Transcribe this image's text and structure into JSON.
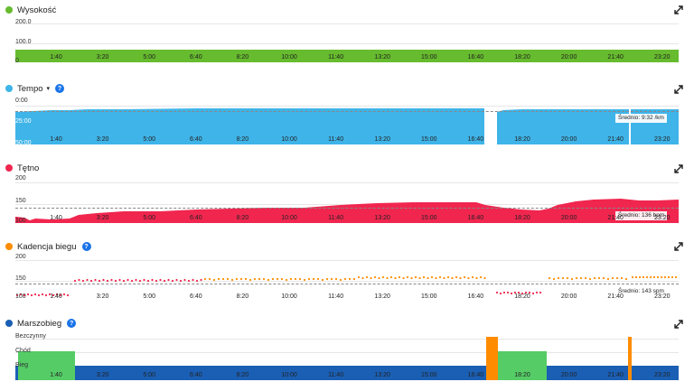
{
  "colors": {
    "green": "#66bb2e",
    "blue": "#3fb4e8",
    "red": "#f0264f",
    "orange": "#ff8c00",
    "navy": "#1a5fb4",
    "walkgreen": "#55cc66",
    "help": "#1a73e8"
  },
  "x_ticks": [
    "1:40",
    "3:20",
    "5:00",
    "6:40",
    "8:20",
    "10:00",
    "11:40",
    "13:20",
    "15:00",
    "16:40",
    "18:20",
    "20:00",
    "21:40",
    "23:20"
  ],
  "panels": {
    "altitude": {
      "title": "Wysokość",
      "icon": "expand-icon",
      "y_ticks": [
        "200.0",
        "100.0",
        "0"
      ]
    },
    "pace": {
      "title": "Tempo",
      "caret": "▾",
      "help": "?",
      "y_ticks": [
        "0:00",
        "25:00",
        "50:00"
      ],
      "average": "Średnio: 9:32 /km"
    },
    "heart": {
      "title": "Tętno",
      "y_ticks": [
        "200",
        "150",
        "100"
      ],
      "average": "Średnio: 136 bpm"
    },
    "cadence": {
      "title": "Kadencja biegu",
      "help": "?",
      "y_ticks": [
        "200",
        "150",
        "100"
      ],
      "average": "Średnio: 143 spm"
    },
    "runwalk": {
      "title": "Marszobieg",
      "help": "?",
      "y_ticks": [
        "Bezczynny",
        "Chód",
        "Bieg"
      ]
    }
  }
}
